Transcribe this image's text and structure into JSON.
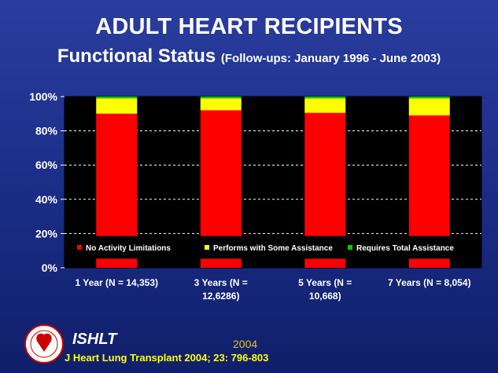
{
  "header": {
    "title": "ADULT HEART RECIPIENTS",
    "subtitle_main": "Functional Status",
    "subtitle_detail": "(Follow-ups: January 1996 - June 2003)"
  },
  "footer": {
    "org": "ISHLT",
    "year": "2004",
    "reference": "J Heart Lung Transplant 2004; 23: 796-803"
  },
  "colors": {
    "no_activity": "#ff0000",
    "some_assistance": "#ffff00",
    "total_assistance": "#00cc00",
    "plot_bg": "#000000"
  },
  "chart_data": {
    "type": "bar",
    "stacked": true,
    "categories": [
      [
        "1 Year  (N = 14,353)"
      ],
      [
        "3 Years  (N =",
        "12,6286)"
      ],
      [
        "5 Years  (N =",
        "10,668)"
      ],
      [
        "7 Years  (N = 8,054)"
      ]
    ],
    "series": [
      {
        "name": "No Activity Limitations",
        "color": "#ff0000",
        "values": [
          90,
          92,
          90.5,
          89
        ]
      },
      {
        "name": "Performs with Some Assistance",
        "color": "#ffff00",
        "values": [
          9,
          7,
          8.5,
          10
        ]
      },
      {
        "name": "Requires Total Assistance",
        "color": "#00cc00",
        "values": [
          1,
          1,
          1,
          1
        ]
      }
    ],
    "ylim": [
      0,
      100
    ],
    "yticks": [
      "0%",
      "20%",
      "40%",
      "60%",
      "80%",
      "100%"
    ],
    "grid": true,
    "legend_position": "bottom-inside"
  }
}
